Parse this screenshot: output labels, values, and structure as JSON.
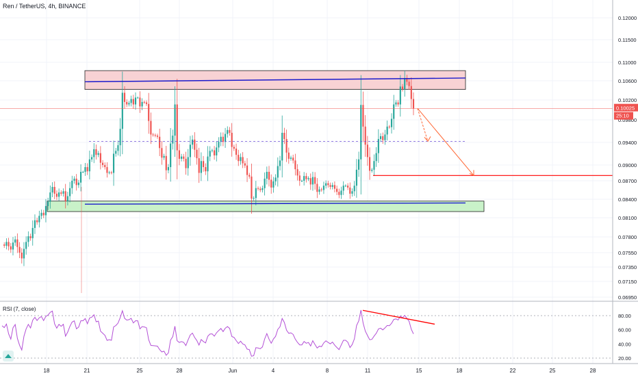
{
  "header": {
    "symbol_title": "Ren / TetherUS, 4h, BINANCE"
  },
  "colors": {
    "up": "#26a69a",
    "down": "#ef5350",
    "rsi_line": "#b34fd6",
    "resistance_fill": "#f8d2d4",
    "support_fill": "#c9f2c9",
    "blue_line": "#1a1acc",
    "red_line": "#ff0000",
    "projection_arrow": "#ff6633",
    "price_tag": "#ef5350"
  },
  "price_axis": {
    "ticks": [
      "0.12000",
      "0.11500",
      "0.11000",
      "0.10600",
      "0.10200",
      "0.09800",
      "0.09400",
      "0.09000",
      "0.08700",
      "0.08400",
      "0.08100",
      "0.07800",
      "0.07550",
      "0.07350",
      "0.07150",
      "0.06950"
    ],
    "current_price": "0.10025",
    "countdown": "25:10"
  },
  "time_axis": {
    "ticks": [
      "18",
      "21",
      "25",
      "28",
      "Jun",
      "4",
      "8",
      "11",
      "15",
      "18",
      "22",
      "25",
      "28"
    ]
  },
  "rsi_panel": {
    "label": "RSI (7, close)",
    "ticks": [
      "80.00",
      "60.00",
      "40.00",
      "20.00"
    ]
  },
  "chart_data": [
    {
      "type": "candlestick",
      "title": "Ren / TetherUS, 4h, BINANCE",
      "x_labels": [
        "18",
        "21",
        "25",
        "28",
        "Jun",
        "4",
        "8",
        "11",
        "15",
        "18",
        "22",
        "25",
        "28"
      ],
      "ylim": [
        0.0685,
        0.1225
      ],
      "series": [
        {
          "name": "Ren / TetherUS",
          "close": [
            0.0768,
            0.0766,
            0.0772,
            0.0765,
            0.076,
            0.0771,
            0.0776,
            0.0764,
            0.0755,
            0.0747,
            0.0761,
            0.0772,
            0.0781,
            0.0778,
            0.0794,
            0.0806,
            0.0803,
            0.0813,
            0.0818,
            0.0814,
            0.0829,
            0.0836,
            0.0851,
            0.086,
            0.0849,
            0.0844,
            0.0851,
            0.0849,
            0.0853,
            0.0837,
            0.0845,
            0.0858,
            0.087,
            0.0874,
            0.0863,
            0.0867,
            0.0887,
            0.0887,
            0.0896,
            0.0888,
            0.091,
            0.0914,
            0.0928,
            0.0918,
            0.0921,
            0.0904,
            0.09,
            0.0896,
            0.0885,
            0.0886,
            0.0885,
            0.092,
            0.0925,
            0.0935,
            0.0964,
            0.1035,
            0.1016,
            0.1011,
            0.1014,
            0.1022,
            0.1011,
            0.1025,
            0.1025,
            0.1007,
            0.1016,
            0.1015,
            0.1012,
            0.0978,
            0.0954,
            0.0953,
            0.0952,
            0.095,
            0.093,
            0.0913,
            0.0916,
            0.089,
            0.0896,
            0.0938,
            0.0952,
            0.1011,
            0.0926,
            0.0911,
            0.0915,
            0.0911,
            0.0894,
            0.0914,
            0.0936,
            0.0945,
            0.0927,
            0.0912,
            0.0885,
            0.0907,
            0.0896,
            0.0888,
            0.0915,
            0.0925,
            0.0926,
            0.0917,
            0.0931,
            0.0941,
            0.095,
            0.0941,
            0.0955,
            0.0962,
            0.0957,
            0.0932,
            0.0929,
            0.0918,
            0.0907,
            0.0914,
            0.0903,
            0.0899,
            0.0881,
            0.0878,
            0.0841,
            0.0842,
            0.0858,
            0.0857,
            0.0855,
            0.0858,
            0.0874,
            0.0887,
            0.0872,
            0.0859,
            0.0869,
            0.0876,
            0.0898,
            0.0908,
            0.0957,
            0.0946,
            0.0922,
            0.0911,
            0.0913,
            0.0908,
            0.0892,
            0.088,
            0.087,
            0.087,
            0.0879,
            0.0873,
            0.0875,
            0.0864,
            0.0877,
            0.0865,
            0.0852,
            0.0856,
            0.0855,
            0.0862,
            0.0866,
            0.0863,
            0.086,
            0.0863,
            0.0857,
            0.0852,
            0.0847,
            0.0854,
            0.0862,
            0.0862,
            0.0859,
            0.0849,
            0.0853,
            0.0862,
            0.0891,
            0.091,
            0.101,
            0.0968,
            0.0936,
            0.0914,
            0.0889,
            0.0891,
            0.0907,
            0.0921,
            0.0946,
            0.0951,
            0.0944,
            0.0954,
            0.0968,
            0.0967,
            0.0982,
            0.1011,
            0.1015,
            0.1011,
            0.1048,
            0.1043,
            0.1066,
            0.1058,
            0.1049,
            0.1022,
            0.1003
          ]
        },
        {
          "name": "RSI (7, close)",
          "values": [
            65.8,
            63.1,
            68.1,
            54.3,
            46.8,
            62.9,
            67.4,
            47.9,
            38.1,
            31.4,
            51.0,
            61.3,
            67.6,
            62.6,
            73.6,
            77.6,
            73.0,
            76.9,
            78.7,
            73.0,
            78.8,
            80.8,
            84.6,
            86.5,
            68.5,
            62.3,
            67.6,
            64.9,
            67.8,
            51.0,
            56.8,
            64.8,
            70.9,
            72.6,
            61.3,
            63.8,
            72.7,
            72.7,
            75.8,
            68.6,
            76.7,
            77.9,
            81.3,
            71.3,
            72.3,
            57.9,
            55.0,
            52.1,
            45.1,
            45.9,
            45.2,
            64.1,
            66.0,
            69.5,
            77.2,
            87.0,
            76.2,
            73.7,
            74.3,
            76.1,
            69.6,
            72.7,
            72.7,
            61.3,
            64.5,
            64.0,
            62.9,
            45.9,
            37.9,
            37.6,
            37.3,
            36.8,
            32.0,
            28.7,
            29.8,
            24.0,
            27.4,
            45.5,
            50.3,
            65.0,
            44.6,
            42.1,
            43.3,
            42.3,
            37.7,
            45.5,
            52.6,
            55.3,
            49.2,
            44.9,
            38.4,
            46.2,
            43.4,
            41.4,
            50.9,
            54.0,
            54.3,
            51.0,
            55.8,
            59.0,
            61.8,
            57.5,
            62.3,
            64.5,
            61.9,
            50.5,
            49.2,
            44.7,
            40.6,
            43.9,
            40.0,
            38.6,
            32.7,
            31.9,
            22.6,
            23.4,
            34.7,
            34.2,
            33.3,
            35.8,
            47.0,
            54.6,
            46.8,
            41.0,
            46.9,
            50.8,
            60.5,
            64.2,
            76.0,
            70.3,
            59.4,
            55.0,
            55.7,
            53.5,
            46.7,
            42.2,
            38.7,
            38.7,
            43.5,
            41.0,
            42.1,
            37.1,
            44.6,
            39.3,
            34.2,
            36.8,
            36.2,
            41.4,
            44.4,
            42.2,
            40.1,
            42.6,
            38.3,
            35.0,
            32.0,
            38.6,
            45.2,
            45.2,
            42.5,
            34.9,
            39.2,
            47.2,
            66.1,
            72.6,
            87.8,
            69.3,
            58.0,
            51.8,
            45.9,
            46.5,
            51.2,
            55.1,
            61.2,
            62.3,
            59.9,
            62.7,
            66.1,
            65.8,
            69.2,
            74.6,
            75.4,
            73.8,
            79.4,
            76.9,
            80.3,
            76.2,
            72.1,
            60.8,
            54.3
          ]
        }
      ]
    }
  ]
}
